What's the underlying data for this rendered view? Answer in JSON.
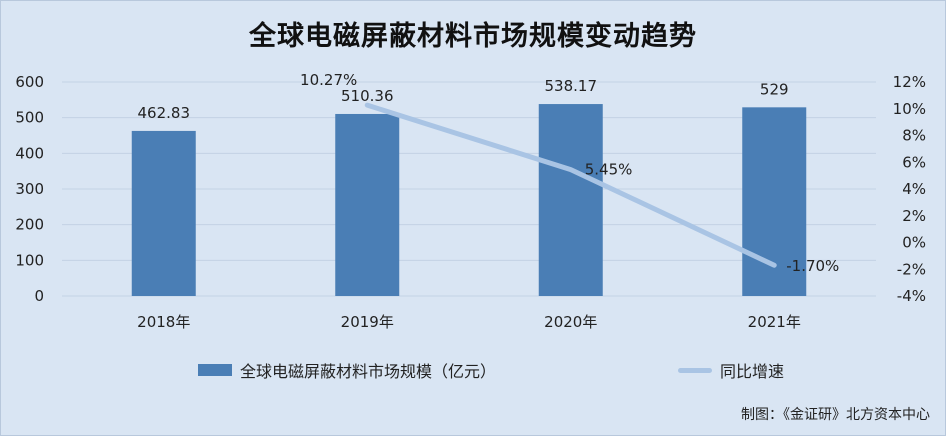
{
  "title": "全球电磁屏蔽材料市场规模变动趋势",
  "source": "制图：《金证研》北方资本中心",
  "colors": {
    "bar": "#4a7eb5",
    "line": "#a9c4e4",
    "grid": "#c3d2e4",
    "background": "#d9e5f3"
  },
  "chart_data": {
    "type": "bar",
    "categories": [
      "2018年",
      "2019年",
      "2020年",
      "2021年"
    ],
    "series": [
      {
        "name": "全球电磁屏蔽材料市场规模（亿元）",
        "type": "bar",
        "axis": "left",
        "values": [
          462.83,
          510.36,
          538.17,
          529
        ],
        "labels": [
          "462.83",
          "510.36",
          "538.17",
          "529"
        ]
      },
      {
        "name": "同比增速",
        "type": "line",
        "axis": "right",
        "values": [
          null,
          10.27,
          5.45,
          -1.7
        ],
        "labels": [
          "",
          "10.27%",
          "5.45%",
          "-1.70%"
        ]
      }
    ],
    "y_left": {
      "ylim": [
        0,
        600
      ],
      "ticks": [
        "0",
        "100",
        "200",
        "300",
        "400",
        "500",
        "600"
      ]
    },
    "y_right": {
      "ylim": [
        -4,
        12
      ],
      "ticks": [
        "-4%",
        "-2%",
        "0%",
        "2%",
        "4%",
        "6%",
        "8%",
        "10%",
        "12%"
      ]
    },
    "grid": true,
    "legend": "bottom"
  }
}
